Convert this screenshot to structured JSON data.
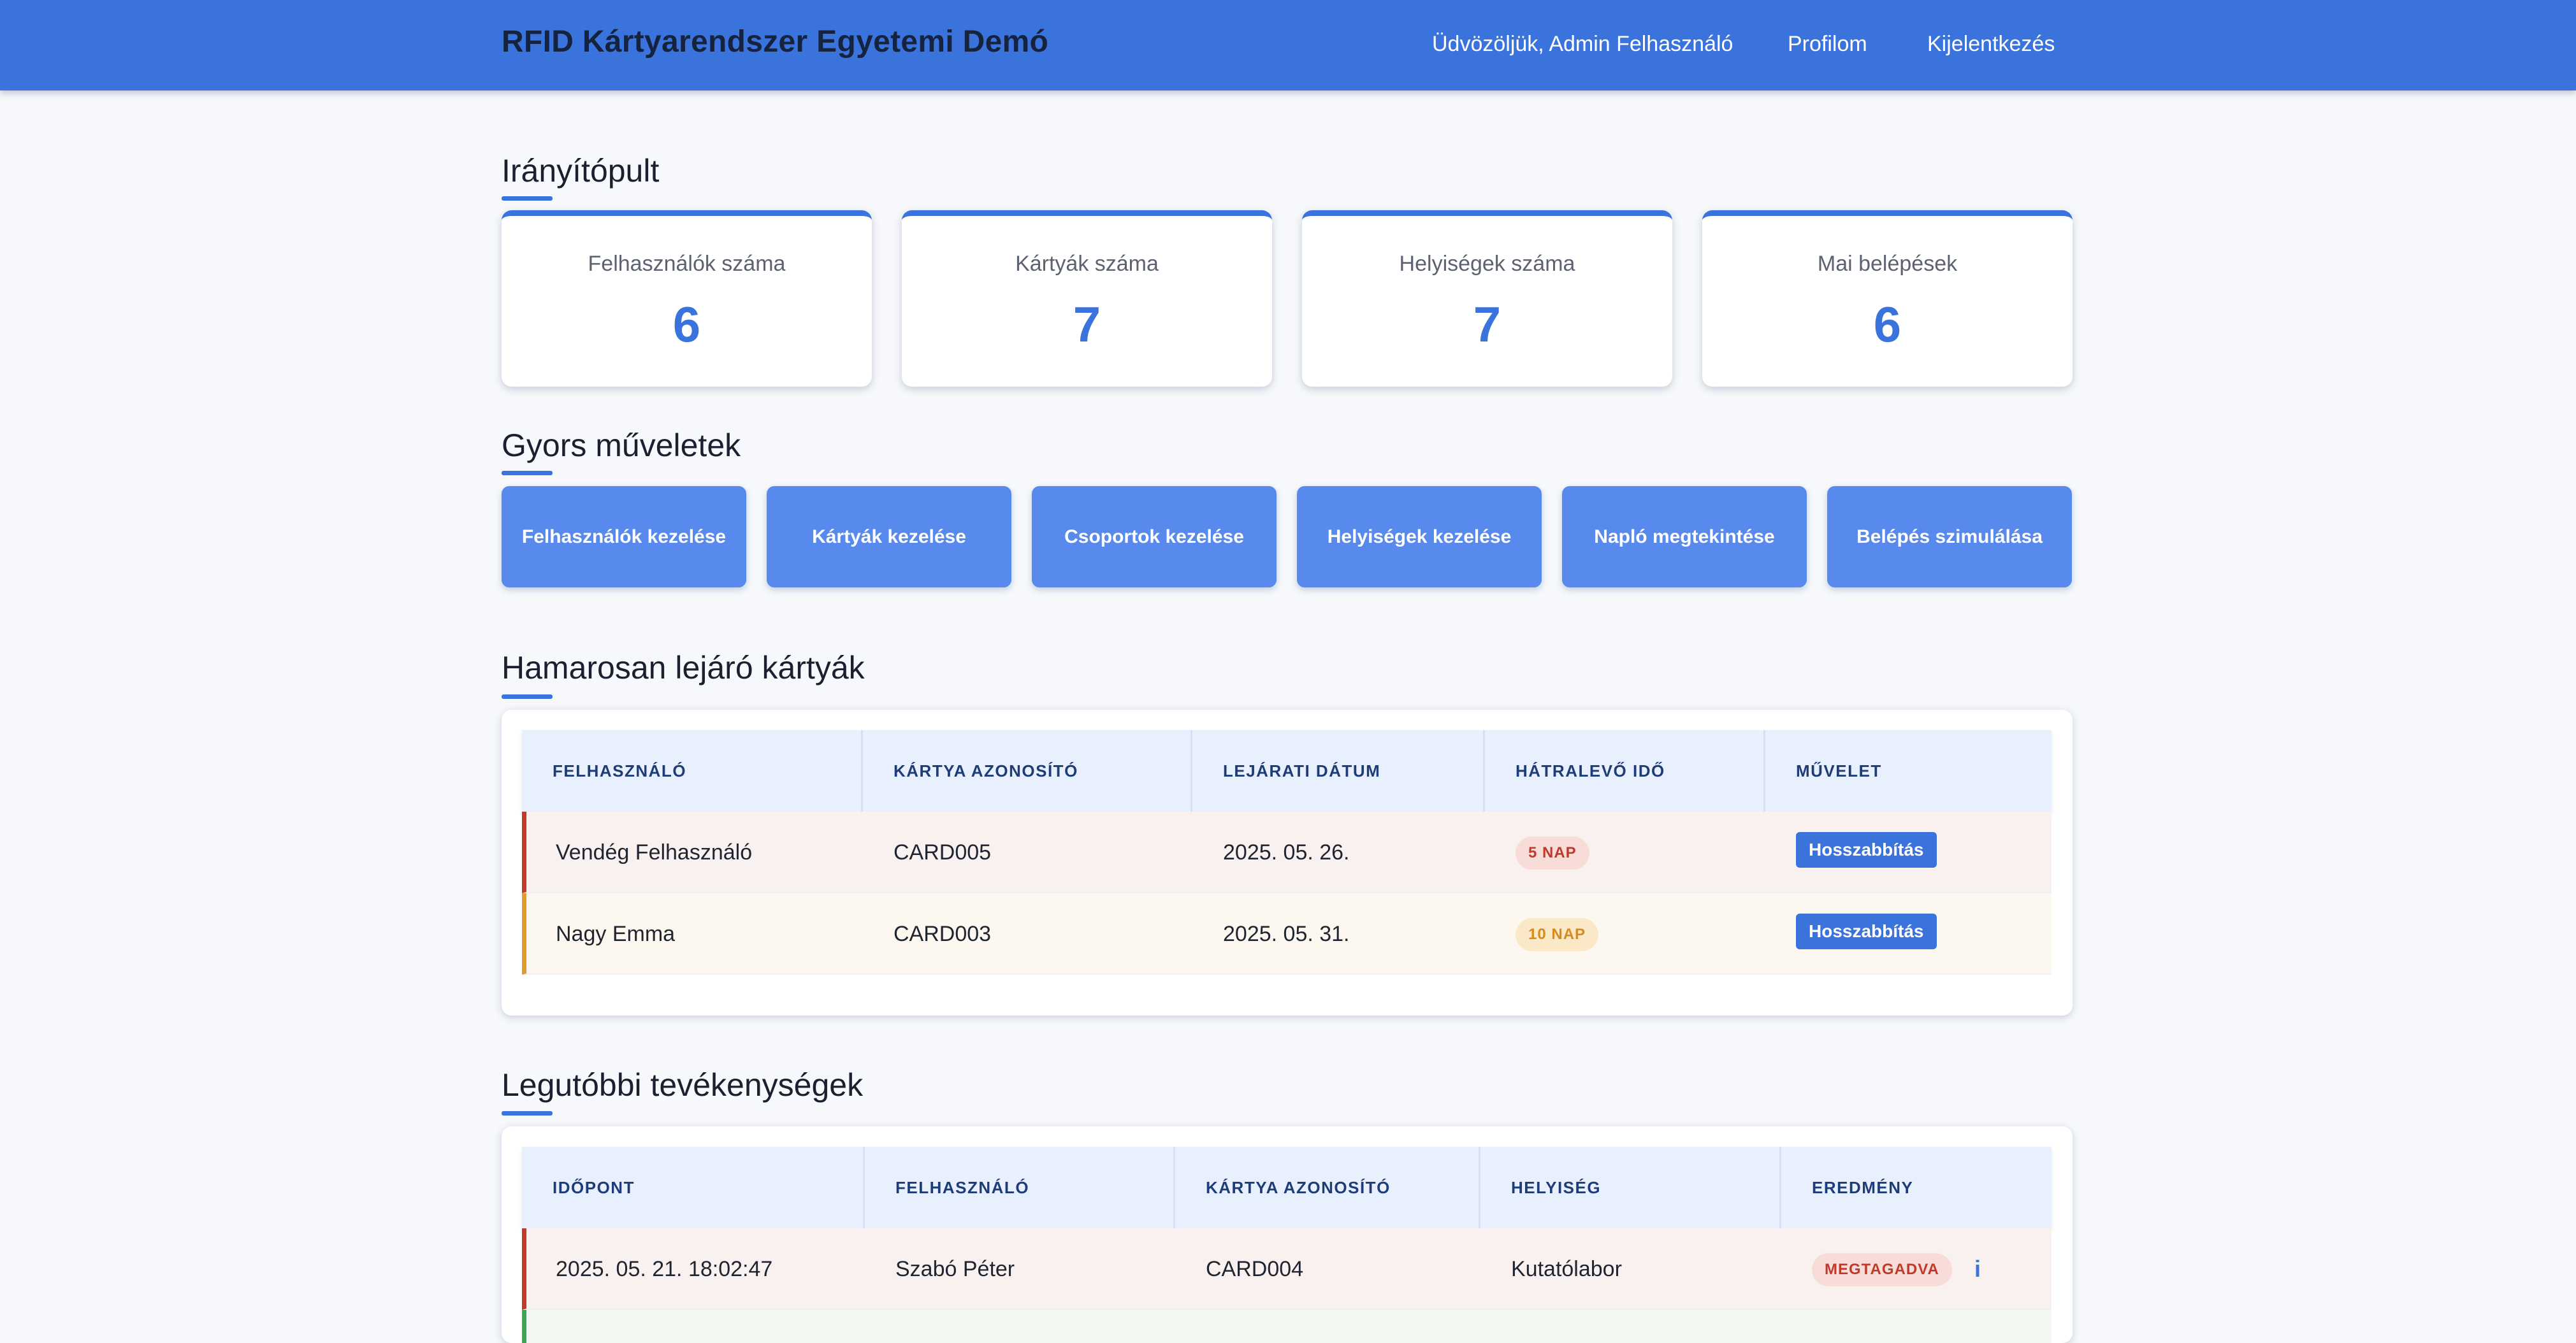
{
  "header": {
    "brand": "RFID Kártyarendszer Egyetemi Demó",
    "welcome": "Üdvözöljük, Admin Felhasználó",
    "profile": "Profilom",
    "logout": "Kijelentkezés"
  },
  "dashboard": {
    "title": "Irányítópult",
    "stats": [
      {
        "label": "Felhasználók száma",
        "value": "6"
      },
      {
        "label": "Kártyák száma",
        "value": "7"
      },
      {
        "label": "Helyiségek száma",
        "value": "7"
      },
      {
        "label": "Mai belépések",
        "value": "6"
      }
    ]
  },
  "quick_actions": {
    "title": "Gyors műveletek",
    "buttons": [
      "Felhasználók kezelése",
      "Kártyák kezelése",
      "Csoportok kezelése",
      "Helyiségek kezelése",
      "Napló megtekintése",
      "Belépés szimulálása"
    ]
  },
  "expiring": {
    "title": "Hamarosan lejáró kártyák",
    "columns": [
      "FELHASZNÁLÓ",
      "KÁRTYA AZONOSÍTÓ",
      "LEJÁRATI DÁTUM",
      "HÁTRALEVŐ IDŐ",
      "MŰVELET"
    ],
    "rows": [
      {
        "user": "Vendég Felhasználó",
        "card": "CARD005",
        "date": "2025. 05. 26.",
        "remaining": "5 NAP",
        "action": "Hosszabbítás"
      },
      {
        "user": "Nagy Emma",
        "card": "CARD003",
        "date": "2025. 05. 31.",
        "remaining": "10 NAP",
        "action": "Hosszabbítás"
      }
    ]
  },
  "recent": {
    "title": "Legutóbbi tevékenységek",
    "columns": [
      "IDŐPONT",
      "FELHASZNÁLÓ",
      "KÁRTYA AZONOSÍTÓ",
      "HELYISÉG",
      "EREDMÉNY"
    ],
    "rows": [
      {
        "time": "2025. 05. 21. 18:02:47",
        "user": "Szabó Péter",
        "card": "CARD004",
        "room": "Kutatólabor",
        "result": "MEGTAGADVA",
        "info": "i"
      }
    ]
  },
  "colors": {
    "accent": "#3a73dc",
    "button": "#578aec",
    "danger": "#c0392b",
    "warning": "#e29a2c",
    "success": "#3aa556"
  }
}
